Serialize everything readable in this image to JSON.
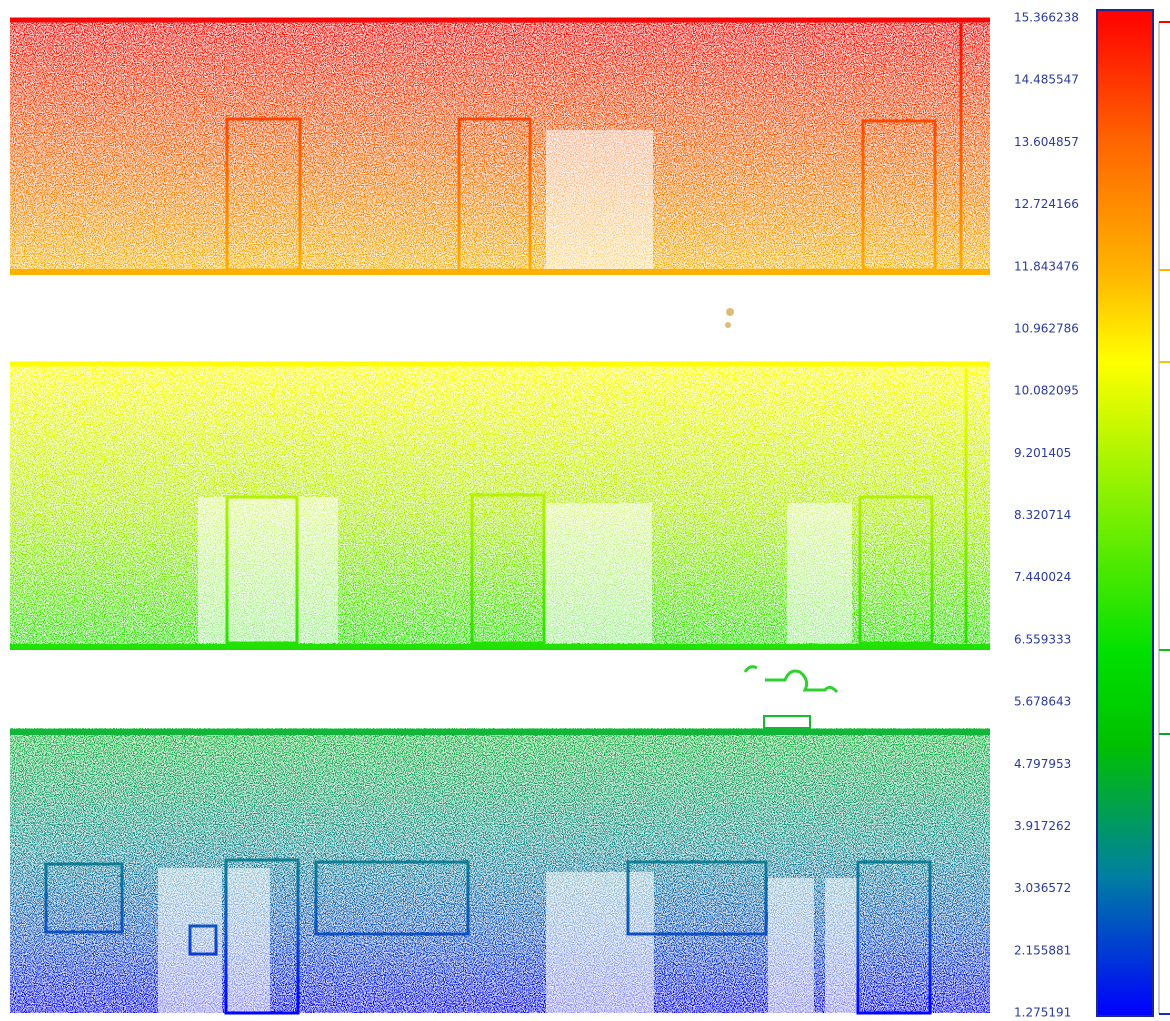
{
  "color_scale": {
    "labels": [
      "15.366238",
      "14.485547",
      "13.604857",
      "12.724166",
      "11.843476",
      "10.962786",
      "10.082095",
      "9.201405",
      "8.320714",
      "7.440024",
      "6.559333",
      "5.678643",
      "4.797953",
      "3.917262",
      "3.036572",
      "2.155881",
      "1.275191"
    ]
  }
}
